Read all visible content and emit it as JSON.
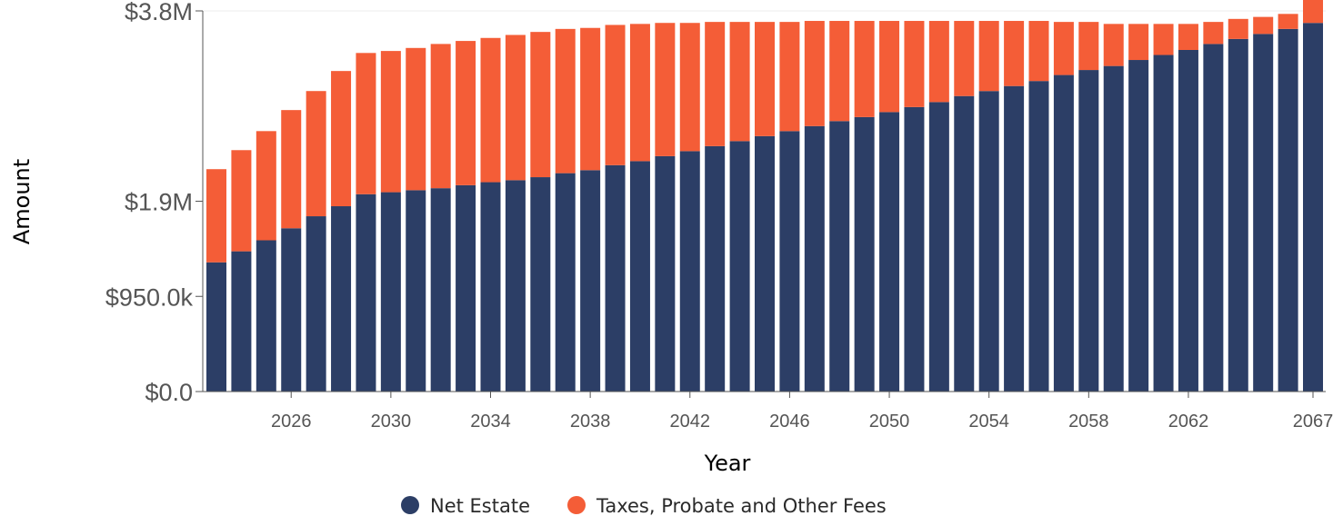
{
  "chart_data": {
    "type": "bar",
    "stacked": true,
    "title": "",
    "xlabel": "Year",
    "ylabel": "Amount",
    "ylim": [
      0,
      3800000
    ],
    "y_ticks": [
      {
        "value": 0,
        "label": "$0.0"
      },
      {
        "value": 950000,
        "label": "$950.0k"
      },
      {
        "value": 1900000,
        "label": "$1.9M"
      },
      {
        "value": 3800000,
        "label": "$3.8M"
      }
    ],
    "x_tick_labels": [
      "2026",
      "2030",
      "2034",
      "2038",
      "2042",
      "2046",
      "2050",
      "2054",
      "2058",
      "2062",
      "2067"
    ],
    "categories": [
      "2023",
      "2024",
      "2025",
      "2026",
      "2027",
      "2028",
      "2029",
      "2030",
      "2031",
      "2032",
      "2033",
      "2034",
      "2035",
      "2036",
      "2037",
      "2038",
      "2039",
      "2040",
      "2041",
      "2042",
      "2043",
      "2044",
      "2045",
      "2046",
      "2047",
      "2048",
      "2049",
      "2050",
      "2051",
      "2052",
      "2053",
      "2054",
      "2055",
      "2056",
      "2057",
      "2058",
      "2059",
      "2060",
      "2061",
      "2062",
      "2063",
      "2064",
      "2065",
      "2066",
      "2067"
    ],
    "series": [
      {
        "name": "Net Estate",
        "color": "#2c3e66",
        "values": [
          1290000,
          1400000,
          1510000,
          1630000,
          1750000,
          1850000,
          1970000,
          1990000,
          2010000,
          2030000,
          2060000,
          2090000,
          2110000,
          2140000,
          2180000,
          2210000,
          2260000,
          2300000,
          2350000,
          2400000,
          2450000,
          2500000,
          2550000,
          2600000,
          2650000,
          2700000,
          2740000,
          2790000,
          2840000,
          2890000,
          2950000,
          3000000,
          3050000,
          3100000,
          3160000,
          3210000,
          3250000,
          3310000,
          3360000,
          3410000,
          3470000,
          3520000,
          3570000,
          3620000,
          3680000
        ]
      },
      {
        "name": "Taxes, Probate and Other Fees",
        "color": "#f45d37",
        "values": [
          930000,
          1010000,
          1090000,
          1180000,
          1250000,
          1350000,
          1410000,
          1410000,
          1420000,
          1440000,
          1440000,
          1440000,
          1450000,
          1450000,
          1440000,
          1420000,
          1400000,
          1370000,
          1330000,
          1280000,
          1240000,
          1190000,
          1140000,
          1090000,
          1050000,
          1000000,
          960000,
          910000,
          860000,
          810000,
          750000,
          700000,
          650000,
          600000,
          530000,
          480000,
          420000,
          360000,
          310000,
          260000,
          220000,
          200000,
          170000,
          150000,
          230000
        ]
      }
    ],
    "legend_position": "bottom"
  }
}
